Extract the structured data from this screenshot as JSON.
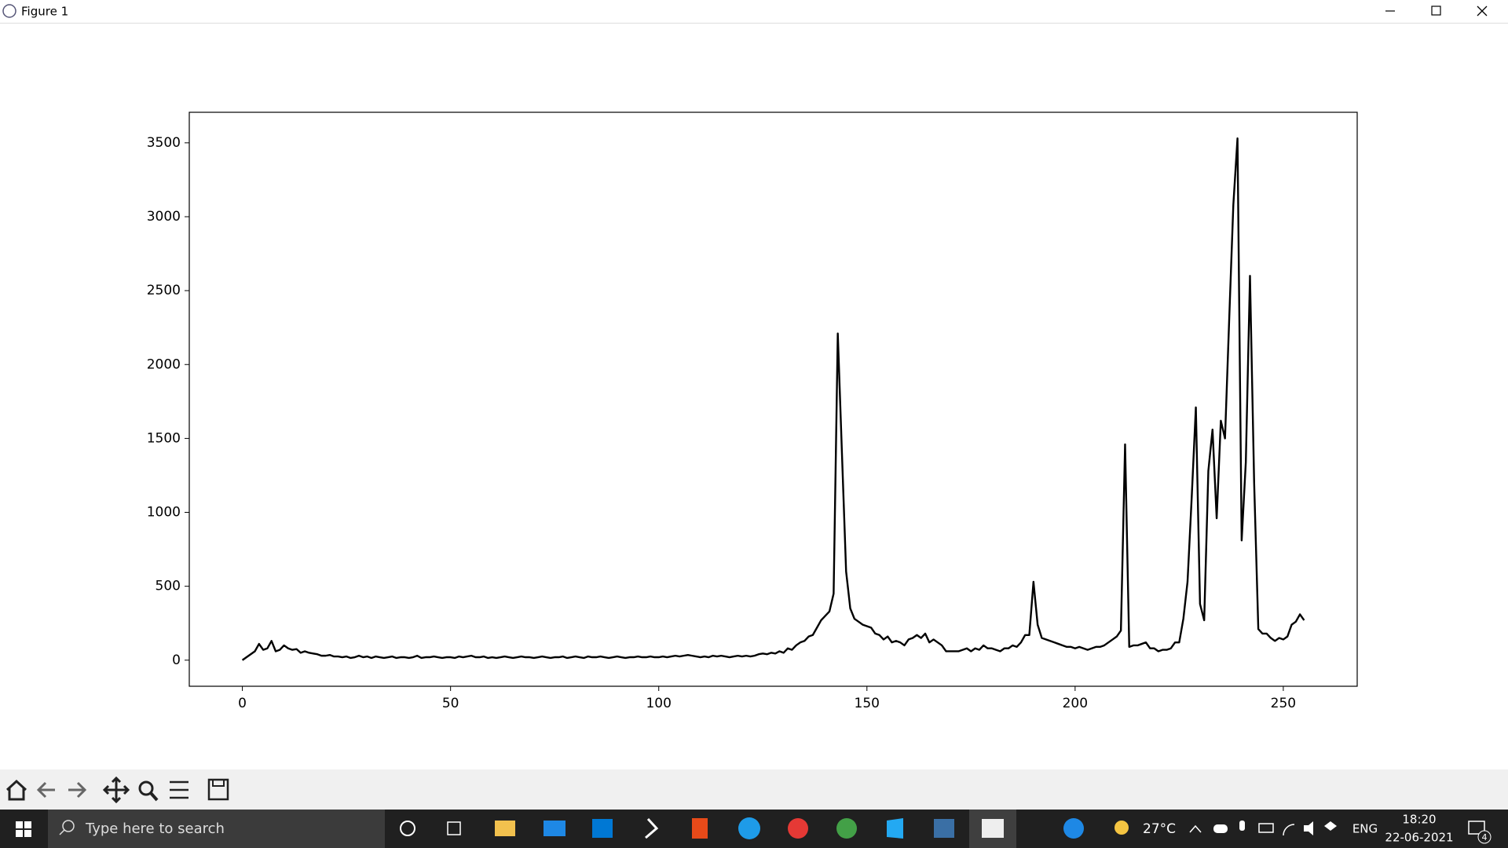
{
  "window": {
    "title": "Figure 1"
  },
  "chart_data": {
    "type": "line",
    "color": "#000000",
    "x": [
      0,
      1,
      2,
      3,
      4,
      5,
      6,
      7,
      8,
      9,
      10,
      11,
      12,
      13,
      14,
      15,
      16,
      17,
      18,
      19,
      20,
      21,
      22,
      23,
      24,
      25,
      26,
      27,
      28,
      29,
      30,
      31,
      32,
      33,
      34,
      35,
      36,
      37,
      38,
      39,
      40,
      41,
      42,
      43,
      44,
      45,
      46,
      47,
      48,
      49,
      50,
      51,
      52,
      53,
      54,
      55,
      56,
      57,
      58,
      59,
      60,
      61,
      62,
      63,
      64,
      65,
      66,
      67,
      68,
      69,
      70,
      71,
      72,
      73,
      74,
      75,
      76,
      77,
      78,
      79,
      80,
      81,
      82,
      83,
      84,
      85,
      86,
      87,
      88,
      89,
      90,
      91,
      92,
      93,
      94,
      95,
      96,
      97,
      98,
      99,
      100,
      101,
      102,
      103,
      104,
      105,
      106,
      107,
      108,
      109,
      110,
      111,
      112,
      113,
      114,
      115,
      116,
      117,
      118,
      119,
      120,
      121,
      122,
      123,
      124,
      125,
      126,
      127,
      128,
      129,
      130,
      131,
      132,
      133,
      134,
      135,
      136,
      137,
      138,
      139,
      140,
      141,
      142,
      143,
      144,
      145,
      146,
      147,
      148,
      149,
      150,
      151,
      152,
      153,
      154,
      155,
      156,
      157,
      158,
      159,
      160,
      161,
      162,
      163,
      164,
      165,
      166,
      167,
      168,
      169,
      170,
      171,
      172,
      173,
      174,
      175,
      176,
      177,
      178,
      179,
      180,
      181,
      182,
      183,
      184,
      185,
      186,
      187,
      188,
      189,
      190,
      191,
      192,
      193,
      194,
      195,
      196,
      197,
      198,
      199,
      200,
      201,
      202,
      203,
      204,
      205,
      206,
      207,
      208,
      209,
      210,
      211,
      212,
      213,
      214,
      215,
      216,
      217,
      218,
      219,
      220,
      221,
      222,
      223,
      224,
      225,
      226,
      227,
      228,
      229,
      230,
      231,
      232,
      233,
      234,
      235,
      236,
      237,
      238,
      239,
      240,
      241,
      242,
      243,
      244,
      245,
      246,
      247,
      248,
      249,
      250,
      251,
      252,
      253,
      254,
      255
    ],
    "values": [
      0,
      20,
      40,
      60,
      110,
      70,
      80,
      130,
      60,
      70,
      100,
      80,
      70,
      75,
      50,
      60,
      50,
      45,
      40,
      30,
      30,
      35,
      25,
      25,
      20,
      25,
      15,
      20,
      30,
      20,
      25,
      15,
      25,
      20,
      15,
      20,
      25,
      15,
      20,
      20,
      15,
      20,
      30,
      15,
      20,
      20,
      25,
      20,
      15,
      20,
      20,
      15,
      25,
      20,
      25,
      30,
      20,
      20,
      25,
      15,
      20,
      15,
      20,
      25,
      20,
      15,
      20,
      25,
      20,
      20,
      15,
      20,
      25,
      20,
      15,
      20,
      20,
      25,
      15,
      20,
      25,
      20,
      15,
      25,
      20,
      20,
      25,
      20,
      15,
      20,
      25,
      20,
      15,
      20,
      20,
      25,
      20,
      20,
      25,
      20,
      20,
      25,
      20,
      25,
      30,
      25,
      30,
      35,
      30,
      25,
      20,
      25,
      20,
      30,
      25,
      30,
      25,
      20,
      25,
      30,
      25,
      30,
      25,
      30,
      40,
      45,
      40,
      50,
      45,
      60,
      50,
      80,
      70,
      100,
      120,
      130,
      160,
      170,
      220,
      270,
      300,
      330,
      450,
      2210,
      1400,
      600,
      350,
      280,
      260,
      240,
      230,
      220,
      180,
      170,
      140,
      160,
      120,
      130,
      120,
      100,
      140,
      150,
      170,
      150,
      180,
      120,
      140,
      120,
      100,
      60,
      60,
      60,
      60,
      70,
      80,
      60,
      80,
      70,
      100,
      80,
      80,
      70,
      60,
      80,
      80,
      100,
      90,
      120,
      170,
      170,
      530,
      240,
      150,
      140,
      130,
      120,
      110,
      100,
      90,
      90,
      80,
      90,
      80,
      70,
      80,
      90,
      90,
      100,
      120,
      140,
      160,
      200,
      1460,
      90,
      100,
      100,
      110,
      120,
      80,
      80,
      60,
      70,
      70,
      80,
      120,
      120,
      280,
      530,
      1100,
      1710,
      380,
      270,
      1280,
      1560,
      960,
      1620,
      1500,
      2300,
      3080,
      3530,
      810,
      1340,
      2600,
      1200,
      210,
      180,
      180,
      150,
      130,
      150,
      140,
      160,
      240,
      260,
      310,
      270
    ],
    "xlim": [
      -12.75,
      267.75
    ],
    "ylim": [
      -176.5,
      3706.5
    ],
    "xticks": [
      0,
      50,
      100,
      150,
      200,
      250
    ],
    "yticks": [
      0,
      500,
      1000,
      1500,
      2000,
      2500,
      3000,
      3500
    ]
  },
  "taskbar": {
    "search_placeholder": "Type here to search",
    "weather": "27°C",
    "language": "ENG",
    "time": "18:20",
    "date": "22-06-2021",
    "notifications": 4
  }
}
